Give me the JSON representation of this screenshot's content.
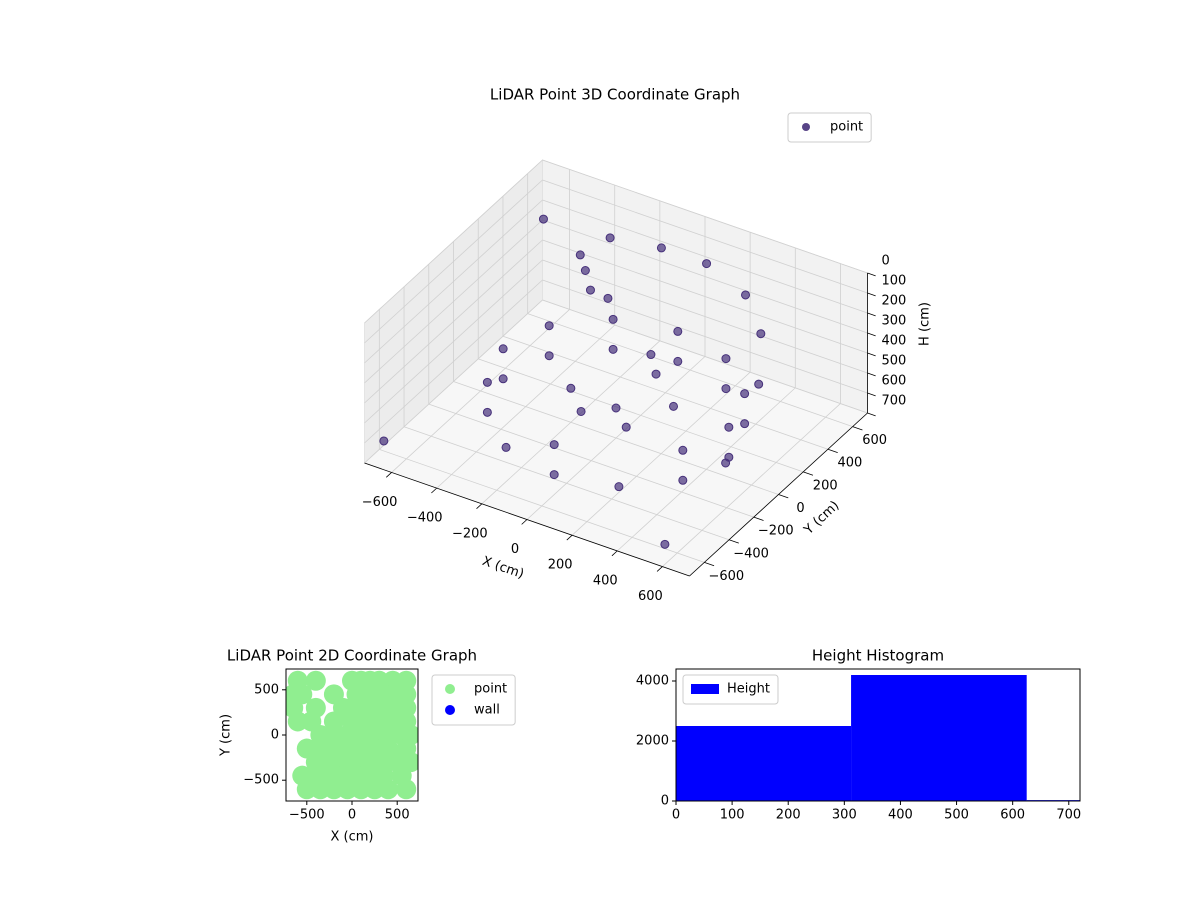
{
  "chart_data": [
    {
      "type": "scatter3d",
      "title": "LiDAR Point 3D Coordinate Graph",
      "x_label": "X (cm)",
      "y_label": "Y (cm)",
      "z_label": "H (cm)",
      "xlim": [
        -720,
        720
      ],
      "ylim": [
        -720,
        720
      ],
      "zlim": [
        700,
        0
      ],
      "xticks": [
        {
          "value": -600,
          "label": "−600"
        },
        {
          "value": -400,
          "label": "−400"
        },
        {
          "value": -200,
          "label": "−200"
        },
        0,
        200,
        400,
        600
      ],
      "yticks": [
        {
          "value": -600,
          "label": "−600"
        },
        {
          "value": -400,
          "label": "−400"
        },
        {
          "value": -200,
          "label": "−200"
        },
        0,
        200,
        400,
        600
      ],
      "zticks": [
        0,
        100,
        200,
        300,
        400,
        500,
        600,
        700
      ],
      "grid": true,
      "legend": "upper right",
      "series": [
        {
          "name": "point",
          "color": "#46307a",
          "x": [
            500,
            433,
            250,
            0,
            -250,
            -433,
            -500,
            -433,
            -250,
            0,
            250,
            433,
            500,
            433,
            250,
            0,
            -250,
            -433,
            -500,
            -433,
            0,
            433,
            -300,
            -100,
            100,
            300,
            450,
            550,
            -300,
            -250,
            -350,
            -200,
            100,
            150,
            0,
            -100,
            100,
            200,
            -200,
            -700,
            600,
            -650,
            650
          ],
          "y": [
            0,
            250,
            433,
            500,
            433,
            250,
            0,
            -250,
            -433,
            -500,
            -433,
            -250,
            0,
            250,
            433,
            500,
            433,
            250,
            0,
            -250,
            -500,
            -250,
            500,
            550,
            550,
            500,
            350,
            150,
            300,
            250,
            350,
            300,
            100,
            50,
            0,
            -100,
            -100,
            100,
            0,
            -600,
            -700,
            600,
            -300
          ],
          "z": [
            600,
            600,
            600,
            600,
            600,
            600,
            600,
            600,
            600,
            600,
            600,
            600,
            450,
            450,
            450,
            450,
            450,
            450,
            450,
            450,
            450,
            450,
            100,
            100,
            100,
            150,
            200,
            300,
            150,
            200,
            120,
            250,
            300,
            350,
            550,
            550,
            550,
            520,
            530,
            650,
            600,
            200,
            400
          ]
        }
      ]
    },
    {
      "type": "scatter",
      "title": "LiDAR Point 2D Coordinate Graph",
      "x_label": "X (cm)",
      "y_label": "Y (cm)",
      "xlim": [
        -730,
        730
      ],
      "ylim": [
        -730,
        730
      ],
      "xticks": [
        {
          "value": -500,
          "label": "−500"
        },
        0,
        500
      ],
      "yticks": [
        {
          "value": -500,
          "label": "−500"
        },
        0,
        500
      ],
      "legend": "outside right",
      "series": [
        {
          "name": "point",
          "color": "#90ee90",
          "x": [
            -600,
            -400,
            0,
            100,
            200,
            300,
            450,
            600,
            -650,
            -550,
            -200,
            50,
            150,
            300,
            450,
            600,
            -650,
            -400,
            -100,
            0,
            150,
            300,
            450,
            600,
            -600,
            -450,
            -200,
            0,
            150,
            300,
            450,
            600,
            -350,
            -200,
            -50,
            100,
            250,
            400,
            550,
            650,
            -500,
            -350,
            -200,
            -50,
            100,
            250,
            400,
            600,
            -400,
            -250,
            -100,
            50,
            200,
            350,
            500,
            650,
            -550,
            -400,
            -250,
            -100,
            50,
            200,
            350,
            550,
            -500,
            -350,
            -200,
            -50,
            100,
            250,
            400,
            600
          ],
          "y": [
            600,
            600,
            600,
            600,
            600,
            600,
            600,
            600,
            450,
            450,
            450,
            450,
            450,
            450,
            450,
            450,
            300,
            300,
            300,
            300,
            300,
            300,
            300,
            300,
            150,
            150,
            150,
            150,
            150,
            150,
            150,
            150,
            0,
            0,
            0,
            0,
            0,
            0,
            0,
            0,
            -150,
            -150,
            -150,
            -150,
            -150,
            -150,
            -150,
            -150,
            -300,
            -300,
            -300,
            -300,
            -300,
            -300,
            -300,
            -300,
            -450,
            -450,
            -450,
            -450,
            -450,
            -450,
            -450,
            -450,
            -600,
            -600,
            -600,
            -600,
            -600,
            -600,
            -600,
            -600
          ]
        },
        {
          "name": "wall",
          "color": "#0000ff",
          "x": [],
          "y": []
        }
      ]
    },
    {
      "type": "histogram",
      "title": "Height Histogram",
      "bins": [
        0,
        312,
        625,
        720
      ],
      "xlim": [
        0,
        720
      ],
      "ylim": [
        0,
        4400
      ],
      "xticks": [
        0,
        100,
        200,
        300,
        400,
        500,
        600,
        700
      ],
      "yticks": [
        0,
        2000,
        4000
      ],
      "legend": "upper left",
      "series": [
        {
          "name": "Height",
          "color": "#0000ff",
          "values": [
            2500,
            4200,
            30
          ]
        }
      ]
    }
  ]
}
